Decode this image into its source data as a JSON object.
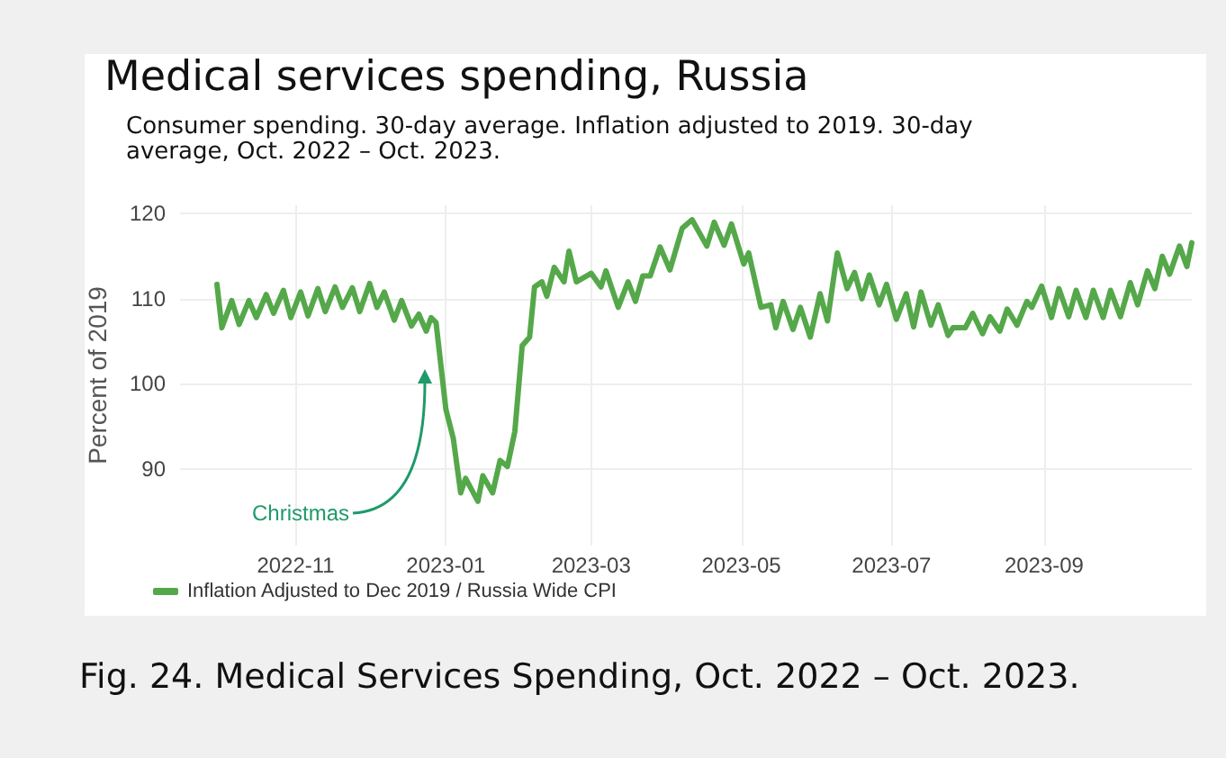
{
  "chart_data": {
    "type": "line",
    "title": "Medical services spending, Russia",
    "subtitle": "Consumer spending. 30-day average. Inflation adjusted to 2019. 30-day average, Oct. 2022 – Oct. 2023.",
    "ylabel": "Percent of 2019",
    "annotations": [
      "Christmas",
      "Fig. 24. Medical Services Spending, Oct. 2022 – Oct. 2023."
    ],
    "x": [
      "2022-09-30",
      "2022-10-02",
      "2022-10-06",
      "2022-10-09",
      "2022-10-13",
      "2022-10-16",
      "2022-10-20",
      "2022-10-23",
      "2022-10-27",
      "2022-10-30",
      "2022-11-03",
      "2022-11-06",
      "2022-11-10",
      "2022-11-13",
      "2022-11-17",
      "2022-11-20",
      "2022-11-24",
      "2022-11-27",
      "2022-12-01",
      "2022-12-04",
      "2022-12-07",
      "2022-12-11",
      "2022-12-14",
      "2022-12-18",
      "2022-12-21",
      "2022-12-24",
      "2022-12-26",
      "2022-12-28",
      "2023-01-01",
      "2023-01-04",
      "2023-01-07",
      "2023-01-09",
      "2023-01-14",
      "2023-01-16",
      "2023-01-20",
      "2023-01-23",
      "2023-01-26",
      "2023-01-29",
      "2023-02-01",
      "2023-02-04",
      "2023-02-06",
      "2023-02-09",
      "2023-02-11",
      "2023-02-14",
      "2023-02-18",
      "2023-02-20",
      "2023-02-23",
      "2023-03-01",
      "2023-03-05",
      "2023-03-07",
      "2023-03-12",
      "2023-03-16",
      "2023-03-19",
      "2023-03-22",
      "2023-03-25",
      "2023-03-29",
      "2023-04-02",
      "2023-04-07",
      "2023-04-11",
      "2023-04-17",
      "2023-04-20",
      "2023-04-24",
      "2023-04-27",
      "2023-05-02",
      "2023-05-04",
      "2023-05-09",
      "2023-05-13",
      "2023-05-15",
      "2023-05-18",
      "2023-05-22",
      "2023-05-25",
      "2023-05-29",
      "2023-06-02",
      "2023-06-05",
      "2023-06-09",
      "2023-06-13",
      "2023-06-16",
      "2023-06-19",
      "2023-06-22",
      "2023-06-26",
      "2023-06-29",
      "2023-07-03",
      "2023-07-07",
      "2023-07-10",
      "2023-07-13",
      "2023-07-17",
      "2023-07-20",
      "2023-07-24",
      "2023-07-26",
      "2023-07-31",
      "2023-08-03",
      "2023-08-07",
      "2023-08-10",
      "2023-08-14",
      "2023-08-17",
      "2023-08-21",
      "2023-08-25",
      "2023-08-27",
      "2023-08-31",
      "2023-09-04",
      "2023-09-07",
      "2023-09-11",
      "2023-09-14",
      "2023-09-18",
      "2023-09-21",
      "2023-09-25",
      "2023-09-28",
      "2023-10-02",
      "2023-10-06",
      "2023-10-09",
      "2023-10-13",
      "2023-10-16",
      "2023-10-19",
      "2023-10-22",
      "2023-10-26",
      "2023-10-29",
      "2023-10-31"
    ],
    "series": [
      {
        "name": "Inflation Adjusted to Dec 2019 / Russia Wide CPI",
        "color": "#55a84a",
        "values": [
          111.7,
          106.6,
          109.8,
          107,
          109.8,
          107.8,
          110.5,
          108.3,
          111,
          107.8,
          110.8,
          108,
          111.2,
          108.5,
          111.4,
          109,
          111.3,
          108.5,
          111.8,
          109,
          110.8,
          107.5,
          109.8,
          106.8,
          108.2,
          106.2,
          107.8,
          107.2,
          97,
          93.6,
          87.2,
          88.9,
          86.2,
          89.2,
          87.2,
          91,
          90.3,
          94.4,
          104.5,
          105.5,
          111.4,
          112,
          110.3,
          113.7,
          112,
          115.6,
          112,
          113,
          111.4,
          113.3,
          109,
          112,
          109.7,
          112.7,
          112.7,
          116.1,
          113.4,
          118.3,
          119.3,
          116.2,
          119,
          116.3,
          118.8,
          114.1,
          115.4,
          109,
          109.3,
          106.6,
          109.7,
          106.4,
          109,
          105.5,
          110.6,
          107.4,
          115.4,
          111.2,
          113.1,
          110,
          112.8,
          109.3,
          111.7,
          107.6,
          110.6,
          106.7,
          110.8,
          106.9,
          109.3,
          105.7,
          106.6,
          106.6,
          108.3,
          105.9,
          107.9,
          106.2,
          108.8,
          106.9,
          109.7,
          109,
          111.5,
          107.8,
          111.2,
          107.9,
          111,
          107.8,
          111,
          107.8,
          111,
          107.9,
          111.9,
          109.3,
          113.3,
          111.2,
          115,
          112.9,
          116.2,
          113.8,
          116.6
        ]
      }
    ],
    "xlim": [
      "2022-09-15",
      "2023-10-31"
    ],
    "ylim": [
      81,
      121
    ],
    "xticks": [
      {
        "value": "2022-11-01",
        "label": "2022-11"
      },
      {
        "value": "2023-01-01",
        "label": "2023-01"
      },
      {
        "value": "2023-03-01",
        "label": "2023-03"
      },
      {
        "value": "2023-05-01",
        "label": "2023-05"
      },
      {
        "value": "2023-07-01",
        "label": "2023-07"
      },
      {
        "value": "2023-09-01",
        "label": "2023-09"
      }
    ],
    "yticks": [
      90,
      100,
      110,
      120
    ],
    "grid": true,
    "legend": "bottom left",
    "marker": "none",
    "line_style": "solid"
  }
}
